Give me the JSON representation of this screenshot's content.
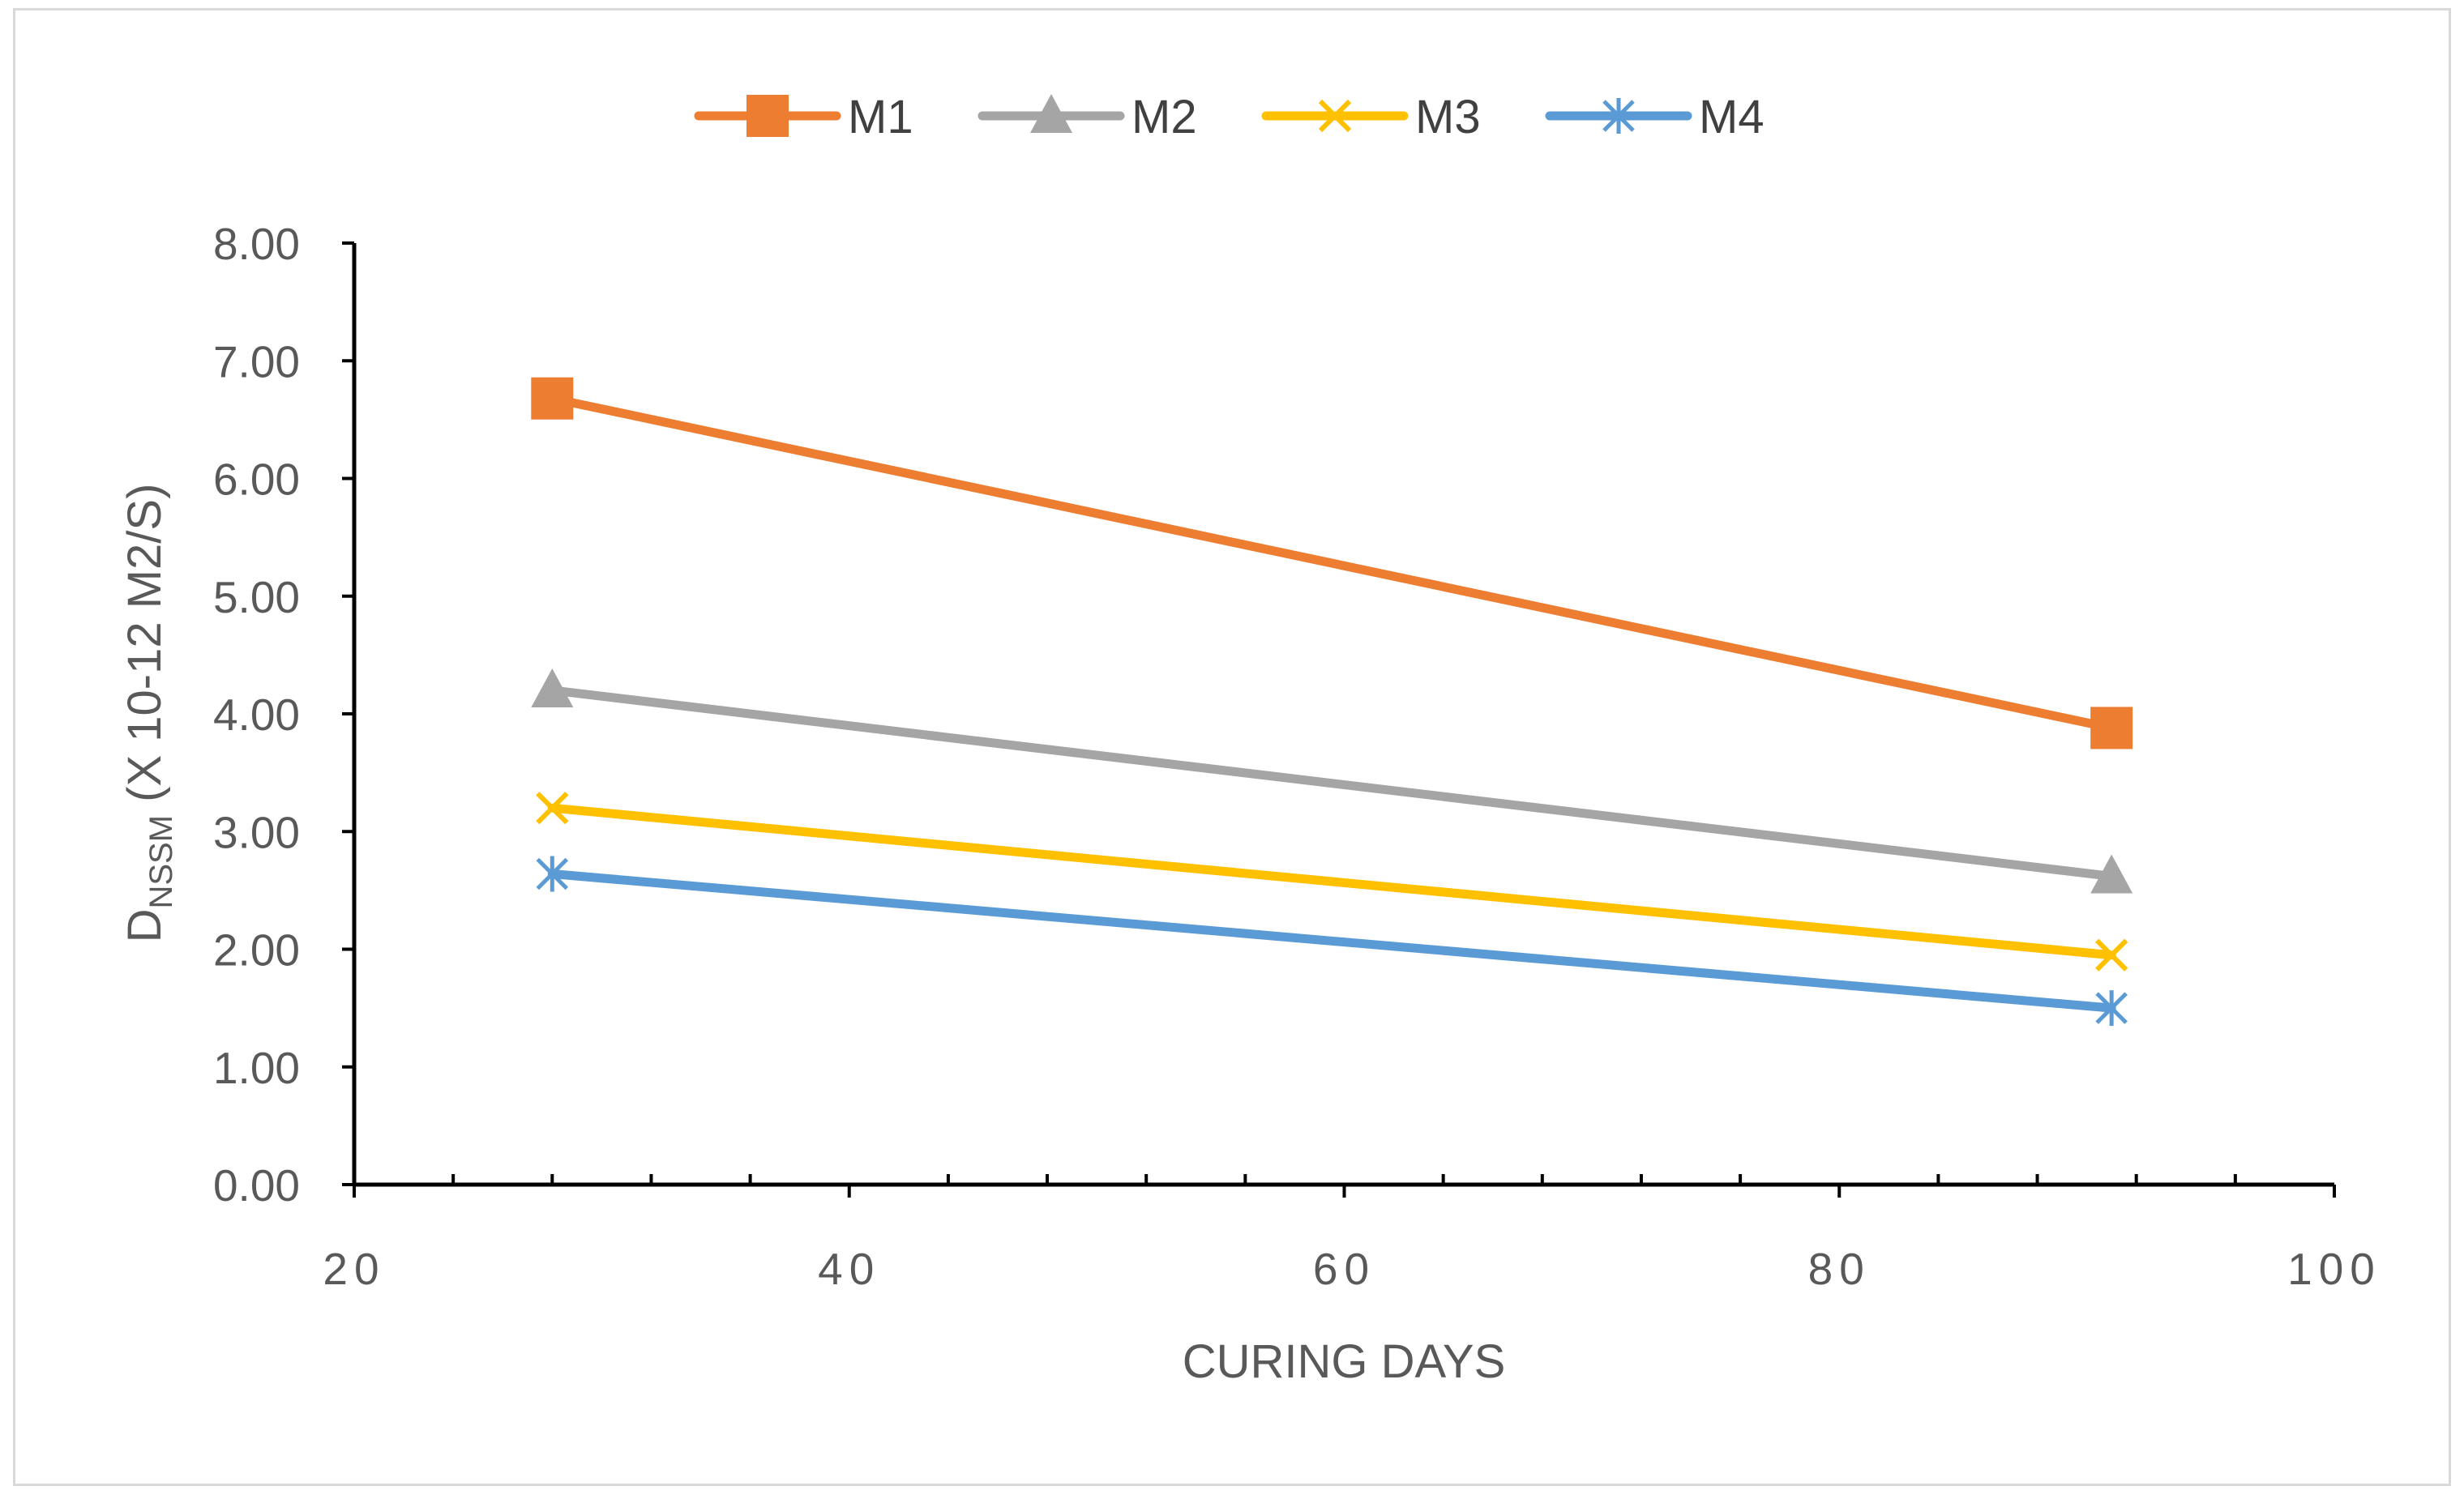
{
  "chart_data": {
    "type": "line",
    "title": "",
    "xlabel": "CURING DAYS",
    "ylabel": {
      "main": "D",
      "subscript": "NSSM",
      "suffix": " (X 10-12 M2/S)"
    },
    "xlim": [
      20,
      100
    ],
    "ylim": [
      0,
      8
    ],
    "x_ticks": [
      "20",
      "40",
      "60",
      "80",
      "100"
    ],
    "x_tick_values": [
      20,
      40,
      60,
      80,
      100
    ],
    "y_ticks": [
      "0.00",
      "1.00",
      "2.00",
      "3.00",
      "4.00",
      "5.00",
      "6.00",
      "7.00",
      "8.00"
    ],
    "y_tick_values": [
      0,
      1,
      2,
      3,
      4,
      5,
      6,
      7,
      8
    ],
    "legend_position": "top",
    "grid": false,
    "series": [
      {
        "name": "M1",
        "x": [
          28,
          91
        ],
        "values": [
          6.68,
          3.88
        ],
        "color": "#ed7d31",
        "marker": "square"
      },
      {
        "name": "M2",
        "x": [
          28,
          91
        ],
        "values": [
          4.2,
          2.62
        ],
        "color": "#a5a5a5",
        "marker": "triangle"
      },
      {
        "name": "M3",
        "x": [
          28,
          91
        ],
        "values": [
          3.2,
          1.95
        ],
        "color": "#ffc000",
        "marker": "x"
      },
      {
        "name": "M4",
        "x": [
          28,
          91
        ],
        "values": [
          2.64,
          1.5
        ],
        "color": "#5b9bd5",
        "marker": "star"
      }
    ]
  }
}
